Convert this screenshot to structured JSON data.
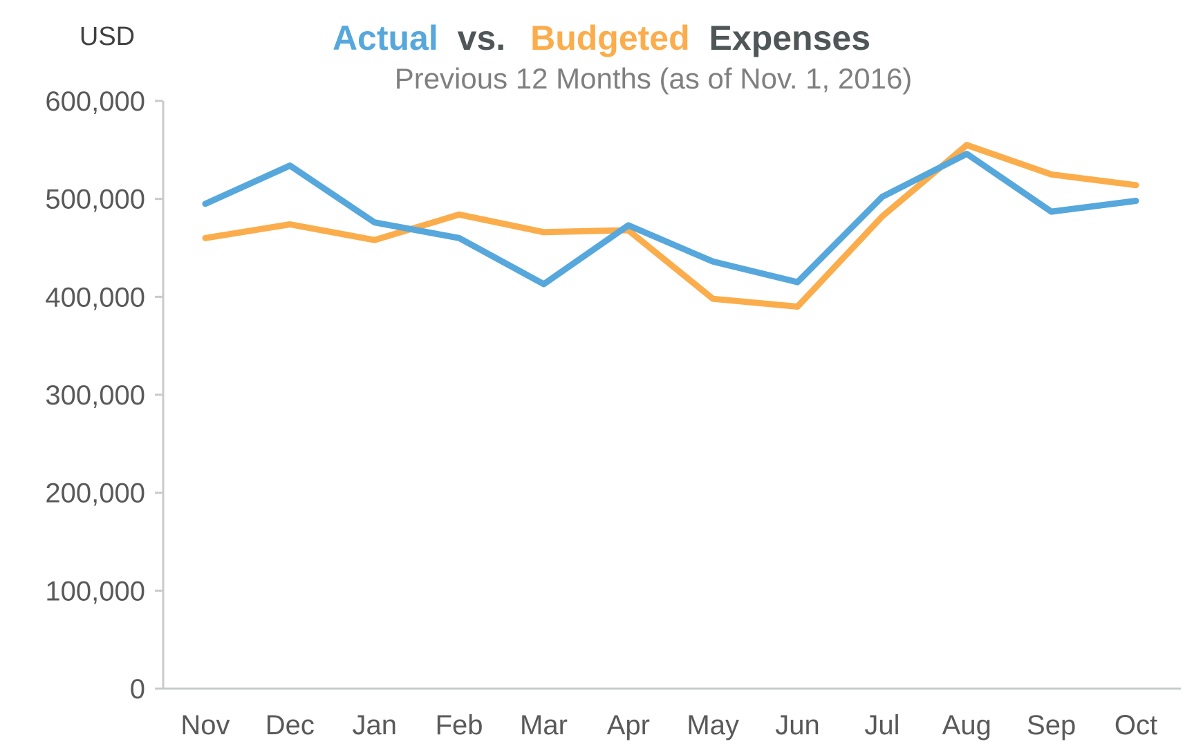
{
  "title": {
    "part1": "Actual",
    "part2": "vs.",
    "part3": "Budgeted",
    "part4": "Expenses",
    "subtitle": "Previous 12 Months (as of Nov. 1, 2016)"
  },
  "colors": {
    "actual": "#56a7dc",
    "budgeted": "#fbad4c",
    "title_dark": "#4f5658",
    "text": "#595959",
    "axis": "#c8cbcc"
  },
  "chart_data": {
    "type": "line",
    "ylabel": "USD",
    "xlabel": "",
    "ylim": [
      0,
      600000
    ],
    "yticks": [
      0,
      100000,
      200000,
      300000,
      400000,
      500000,
      600000
    ],
    "ytick_labels": [
      "0",
      "100,000",
      "200,000",
      "300,000",
      "400,000",
      "500,000",
      "600,000"
    ],
    "categories": [
      "Nov",
      "Dec",
      "Jan",
      "Feb",
      "Mar",
      "Apr",
      "May",
      "Jun",
      "Jul",
      "Aug",
      "Sep",
      "Oct"
    ],
    "grid": false,
    "legend": "none (series identified by title colors)",
    "series": [
      {
        "name": "Actual",
        "color": "#56a7dc",
        "values": [
          495000,
          534000,
          476000,
          460000,
          413000,
          473000,
          436000,
          415000,
          502000,
          546000,
          487000,
          498000
        ]
      },
      {
        "name": "Budgeted",
        "color": "#fbad4c",
        "values": [
          460000,
          474000,
          458000,
          484000,
          466000,
          468000,
          398000,
          390000,
          482000,
          555000,
          525000,
          514000
        ]
      }
    ]
  }
}
